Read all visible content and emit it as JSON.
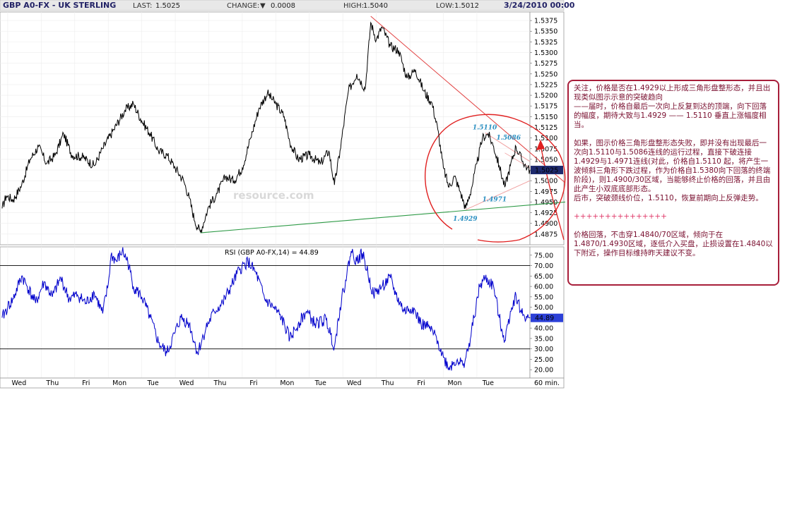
{
  "header": {
    "title": "GBP A0-FX - UK STERLING",
    "last_label": "LAST:",
    "last_value": "1.5025",
    "change_label": "CHANGE:",
    "change_arrow": "▼",
    "change_value": "0.0008",
    "high_label": "HIGH:",
    "high_value": "1.5040",
    "low_label": "LOW:",
    "low_value": "1.5012",
    "datetime": "3/24/2010 00:00"
  },
  "watermark": "resource.com",
  "colors": {
    "price_line": "#000000",
    "rsi_line": "#0000cc",
    "trend_upper": "#e24040",
    "trend_support": "#2e9a46",
    "triangle_lines": "#f0a0a0",
    "circle": "#e02020",
    "arrow": "#e02020",
    "last_price_box": "#1e2a6e",
    "rsi_value_box": "#2c40d8",
    "annotation_text": "#2a8fc1",
    "note_border": "#a81e3a",
    "note_text": "#7a1030"
  },
  "chart_data": [
    {
      "type": "line",
      "name": "price",
      "ylim": [
        1.485,
        1.5395
      ],
      "yticks": [
        "1.5375",
        "1.5350",
        "1.5325",
        "1.5300",
        "1.5275",
        "1.5250",
        "1.5225",
        "1.5200",
        "1.5175",
        "1.5150",
        "1.5125",
        "1.5100",
        "1.5075",
        "1.5050",
        "1.5025",
        "1.5000",
        "1.4975",
        "1.4950",
        "1.4925",
        "1.4900",
        "1.4875"
      ],
      "xlabels": [
        "Wed",
        "Thu",
        "Fri",
        "Mon",
        "Tue",
        "Wed",
        "Thu",
        "Fri",
        "Mon",
        "Tue",
        "Wed",
        "Thu",
        "Fri",
        "Mon",
        "Tue"
      ],
      "x_interval_label": "60 min.",
      "last_price_label": "1.5025",
      "bars_per_day": 24,
      "points": [
        [
          0,
          1.4935
        ],
        [
          3,
          1.4965
        ],
        [
          8,
          1.4955
        ],
        [
          14,
          1.499
        ],
        [
          20,
          1.505
        ],
        [
          26,
          1.508
        ],
        [
          32,
          1.504
        ],
        [
          38,
          1.506
        ],
        [
          44,
          1.511
        ],
        [
          50,
          1.506
        ],
        [
          58,
          1.5055
        ],
        [
          66,
          1.5035
        ],
        [
          72,
          1.5075
        ],
        [
          80,
          1.512
        ],
        [
          88,
          1.5165
        ],
        [
          94,
          1.518
        ],
        [
          100,
          1.514
        ],
        [
          106,
          1.511
        ],
        [
          112,
          1.507
        ],
        [
          118,
          1.506
        ],
        [
          124,
          1.503
        ],
        [
          130,
          1.5
        ],
        [
          134,
          1.496
        ],
        [
          138,
          1.4905
        ],
        [
          142,
          1.488
        ],
        [
          148,
          1.494
        ],
        [
          154,
          1.497
        ],
        [
          160,
          1.501
        ],
        [
          166,
          1.5
        ],
        [
          172,
          1.503
        ],
        [
          178,
          1.51
        ],
        [
          184,
          1.517
        ],
        [
          190,
          1.5205
        ],
        [
          196,
          1.518
        ],
        [
          202,
          1.515
        ],
        [
          206,
          1.509
        ],
        [
          212,
          1.505
        ],
        [
          220,
          1.506
        ],
        [
          228,
          1.504
        ],
        [
          234,
          1.507
        ],
        [
          238,
          1.499
        ],
        [
          242,
          1.507
        ],
        [
          248,
          1.521
        ],
        [
          254,
          1.525
        ],
        [
          260,
          1.5215
        ],
        [
          264,
          1.537
        ],
        [
          268,
          1.533
        ],
        [
          272,
          1.536
        ],
        [
          278,
          1.5315
        ],
        [
          284,
          1.5305
        ],
        [
          290,
          1.524
        ],
        [
          296,
          1.526
        ],
        [
          302,
          1.521
        ],
        [
          308,
          1.518
        ],
        [
          312,
          1.512
        ],
        [
          316,
          1.503
        ],
        [
          320,
          1.4985
        ],
        [
          324,
          1.501
        ],
        [
          328,
          1.4975
        ],
        [
          332,
          1.4935
        ],
        [
          336,
          1.498
        ],
        [
          340,
          1.504
        ],
        [
          344,
          1.51
        ],
        [
          348,
          1.511
        ],
        [
          352,
          1.508
        ],
        [
          356,
          1.5035
        ],
        [
          360,
          1.4985
        ],
        [
          364,
          1.5035
        ],
        [
          368,
          1.508
        ],
        [
          372,
          1.505
        ],
        [
          376,
          1.503
        ],
        [
          378,
          1.5025
        ]
      ],
      "annotations": [
        "1.5110",
        "1.5086",
        "1.4971",
        "1.4929"
      ]
    },
    {
      "type": "line",
      "name": "RSI",
      "title": "RSI (GBP A0-FX,14) = 44.89",
      "ylim": [
        16,
        79
      ],
      "yticks": [
        "75.00",
        "70.00",
        "65.00",
        "60.00",
        "55.00",
        "50.00",
        "45.00",
        "40.00",
        "35.00",
        "30.00",
        "25.00",
        "20.00"
      ],
      "hlines": [
        70,
        30
      ],
      "last_value_label": "44.89",
      "points": [
        [
          0,
          45
        ],
        [
          4,
          50
        ],
        [
          8,
          54
        ],
        [
          14,
          65
        ],
        [
          18,
          60
        ],
        [
          24,
          52
        ],
        [
          30,
          62
        ],
        [
          36,
          55
        ],
        [
          42,
          64
        ],
        [
          48,
          54
        ],
        [
          54,
          56
        ],
        [
          60,
          52
        ],
        [
          66,
          57
        ],
        [
          72,
          47
        ],
        [
          76,
          61
        ],
        [
          78,
          75
        ],
        [
          82,
          72
        ],
        [
          86,
          77
        ],
        [
          90,
          72
        ],
        [
          94,
          60
        ],
        [
          100,
          55
        ],
        [
          106,
          45
        ],
        [
          112,
          33
        ],
        [
          118,
          28
        ],
        [
          124,
          38
        ],
        [
          128,
          45
        ],
        [
          134,
          42
        ],
        [
          140,
          28
        ],
        [
          146,
          40
        ],
        [
          152,
          48
        ],
        [
          158,
          52
        ],
        [
          164,
          60
        ],
        [
          170,
          68
        ],
        [
          176,
          72
        ],
        [
          182,
          66
        ],
        [
          188,
          54
        ],
        [
          194,
          50
        ],
        [
          200,
          45
        ],
        [
          206,
          35
        ],
        [
          212,
          42
        ],
        [
          218,
          48
        ],
        [
          224,
          42
        ],
        [
          232,
          44
        ],
        [
          238,
          31
        ],
        [
          242,
          50
        ],
        [
          246,
          63
        ],
        [
          250,
          77
        ],
        [
          254,
          72
        ],
        [
          258,
          76
        ],
        [
          262,
          66
        ],
        [
          266,
          56
        ],
        [
          272,
          60
        ],
        [
          278,
          64
        ],
        [
          282,
          56
        ],
        [
          288,
          48
        ],
        [
          294,
          50
        ],
        [
          300,
          42
        ],
        [
          306,
          40
        ],
        [
          312,
          34
        ],
        [
          316,
          26
        ],
        [
          320,
          21
        ],
        [
          326,
          25
        ],
        [
          330,
          22
        ],
        [
          334,
          30
        ],
        [
          338,
          45
        ],
        [
          342,
          60
        ],
        [
          346,
          64
        ],
        [
          352,
          60
        ],
        [
          356,
          45
        ],
        [
          360,
          34
        ],
        [
          364,
          48
        ],
        [
          368,
          56
        ],
        [
          372,
          47
        ],
        [
          376,
          45
        ],
        [
          378,
          44.89
        ]
      ]
    }
  ],
  "annotations_note": {
    "p1": "关注，价格是否在1.4929以上形成三角形盘整形态，并且出现类似图示示意的突破趋向",
    "p2": "——届时，价格自最后一次向上反复到达的顶端，向下回落的幅度，期待大致与1.4929 —— 1.5110 垂直上涨幅度相当。",
    "p3": "如果，图示价格三角形盘整形态失败，即并没有出现最后一次向1.5110与1.5086连线的运行过程，直接下破连接1.4929与1.4971连线(对此，价格自1.5110 起，将产生一波倾斜三角形下跌过程，作为价格自1.5380向下回落的终端阶段)，则1.4900/30区域，当能够终止价格的回落，并且由此产生小双底底部形态。",
    "p4": "后市，突破颈线价位，1.5110，恢复前期向上反弹走势。",
    "separator": "+++++++++++++++",
    "p5": "价格回落，不击穿1.4840/70区域，倾向于在1.4870/1.4930区域，逐低介入买盘，止损设置在1.4840以下附近，操作目标维持昨天建议不变。"
  }
}
